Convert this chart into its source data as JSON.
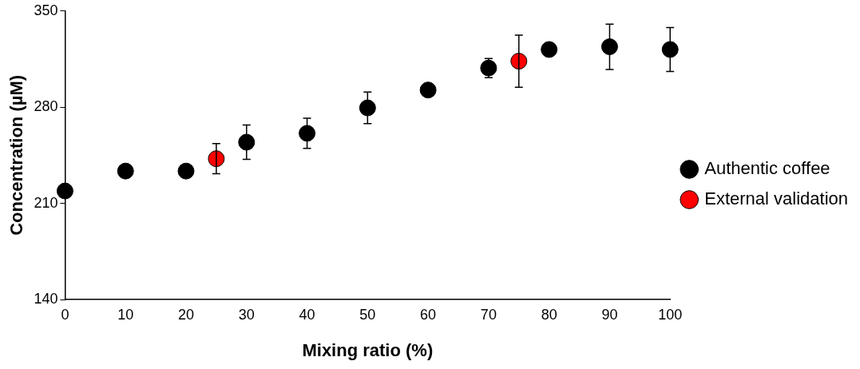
{
  "chart_data": {
    "type": "scatter",
    "xlabel": "Mixing ratio (%)",
    "ylabel": "Concentration (µM)",
    "xlim": [
      0,
      100
    ],
    "xticks": [
      0,
      10,
      20,
      30,
      40,
      50,
      60,
      70,
      80,
      90,
      100
    ],
    "ylim": [
      140,
      350
    ],
    "yticks": [
      140,
      210,
      280,
      350
    ],
    "grid": false,
    "legend": "right",
    "marker": "circle",
    "series": [
      {
        "name": "Authentic coffee",
        "color": "#000000",
        "x": [
          0,
          10,
          20,
          30,
          40,
          50,
          60,
          70,
          80,
          90,
          100
        ],
        "values": [
          219,
          233.5,
          233.5,
          254.5,
          261,
          279.5,
          292.5,
          308.5,
          322,
          324,
          322
        ],
        "errors": [
          null,
          null,
          null,
          12.5,
          11,
          11.5,
          null,
          7,
          4.5,
          16.5,
          16
        ]
      },
      {
        "name": "External validation",
        "color": "#ff0000",
        "x": [
          25,
          75
        ],
        "values": [
          242.5,
          313.5
        ],
        "errors": [
          11,
          19
        ]
      }
    ]
  }
}
